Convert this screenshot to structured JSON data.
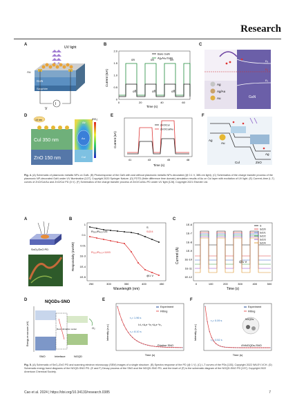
{
  "header": {
    "title": "Research"
  },
  "figure4": {
    "panels": {
      "A": {
        "label": "A",
        "uv": "UV light",
        "layers": [
          "Au",
          "GaN",
          "Sapphire"
        ],
        "v": "V",
        "i": "I"
      },
      "B": {
        "label": "B",
        "legend": [
          "Bare GaN",
          "Ag₁Au₁/GaN"
        ],
        "on": "on",
        "off": "off",
        "ylabel": "Current (mA)",
        "xlabel": "Time (s)",
        "yticks": [
          "0",
          "0.5",
          "1.0",
          "1.5",
          "2.0"
        ],
        "xticks": [
          "0",
          "20",
          "40",
          "60"
        ]
      },
      "C": {
        "label": "C",
        "labels": [
          "Ag",
          "Ag/Au",
          "Au",
          "GaN",
          "Eₑ",
          "Eᵥ",
          "Eₒ"
        ]
      },
      "D": {
        "label": "D",
        "scale": "10 nm",
        "layers": [
          "Cul 350 nm",
          "ZnO 150 nm"
        ],
        "field": [
          "Air",
          "Au",
          "CuI"
        ],
        "cbar": [
          "1.7",
          "1.5",
          "1.1",
          "0.5",
          "0.3"
        ],
        "cbtitle": "|E/E₀|"
      },
      "E": {
        "label": "E",
        "ylabel": "Current (nA)",
        "xlabel": "Time (s)",
        "legend": [
          "ZnO/Cul",
          "ZnO/Cul/Au"
        ],
        "xticks": [
          "41",
          "43",
          "45",
          "48"
        ]
      },
      "F": {
        "label": "F",
        "labels": [
          "Ag",
          "Au",
          "Cul",
          "ZnO",
          "Ag"
        ]
      }
    },
    "caption": "(A) Schematic of plasmonic metallic NPs on GaN. (B) Photoresponse of the GaN with and without plasmonic metallic NPs decorated (@ 0.1 V, 385-nm light). (C) Schematics of the charge transfer process of the plasmonic NP-decorated GaN under UV illumination [127]. Copyright 2020 Springer Nature. (D) FDTD (finite difference time domain) simulation results of Au on Cul layer with excitation of UV light. (E) Current–time (I–T) curves of ZnO/Cul/Au and ZnO/Cul PD (0 V). (F) Schematics of the charge transfer process of ZnO/Cul/Au PD under UV light [128]. Copyright 2021 Elsevier Ltd.",
    "caption_label": "Fig. 4."
  },
  "figure5": {
    "panels": {
      "A": {
        "label": "A",
        "device": "SnO₂/ZnO PD"
      },
      "B": {
        "label": "B",
        "ylabel": "Responsivity (mA/W)",
        "xlabel": "Wavelength (nm)",
        "legend": [
          "S",
          "S/Z/4"
        ],
        "ann1": "R₃₅₀/R₄₀₀=25",
        "ann2": "R₃₅₀/R₄₀₀=1193",
        "bias": "@1 V",
        "xticks": [
          "250",
          "300",
          "350",
          "400",
          "450"
        ],
        "yticks": [
          "1",
          "0.1",
          "0.01",
          "1E-3",
          "1E-4",
          "1E-5"
        ]
      },
      "C": {
        "label": "C",
        "ylabel": "Current (A)",
        "xlabel": "Time (s)",
        "legend": [
          "S",
          "S/Z/0",
          "S/Z/1",
          "S/Z/2",
          "S/Z/3",
          "S/Z/4"
        ],
        "bias": "@1 V",
        "yticks": [
          "1E-6",
          "1E-7",
          "1E-8",
          "1E-9",
          "1E-10",
          "1E-11",
          "1E-12"
        ],
        "xticks": [
          "0",
          "100",
          "200",
          "300",
          "400",
          "500"
        ]
      },
      "D": {
        "label": "D",
        "title": "NQGDs-SNO",
        "ylabel": "Energy vs vacuum (eV)",
        "labels": [
          "SNO",
          "Interface",
          "NGQD",
          "Recombination center",
          "O₂"
        ]
      },
      "E": {
        "label": "E",
        "legend": [
          "Experiment",
          "Fitting"
        ],
        "tau1": "τ₁= 1.96 s",
        "tau2": "τ₂= 8.10 s",
        "formula": "I=I₀+A₁e⁻ᵗ/τ₁+A₂e⁻ᵗ/τ₂",
        "sample": "Pristine SNO",
        "xlabel": "Time (s)",
        "ylabel": "Intensity (a.u.)"
      },
      "F": {
        "label": "F",
        "legend": [
          "Experiment",
          "Fitting"
        ],
        "tau1": "τ₁= 0.09 s",
        "tau2": "τ₂= 0.52 s",
        "sample": "4%NGQDs-SNO",
        "badge": "NGQDs",
        "xlabel": "Time (s)",
        "ylabel": "Intensity (a.u.)"
      }
    },
    "caption": "(A) Schematic of SnO₂/ZnO PD and scanning electron microscopy (SEM) images of a single structure. (B) Spectra response of the PD (@ 1 V). (C) I–T curves of the PDs [133]. Copyright 2022 WILEY-VCH. (D) Schematic energy band diagrams of the NGQD-SNO PD. (E and F) Decay process of the SNO and the NGQD-SNO PD, and the inset of (F) is the schematic diagram of the NGQD-SNO PD [137]. Copyright 2022 American Chemical Society.",
    "caption_label": "Fig. 5."
  },
  "footer": {
    "left": "Cao et al. 2024 | https://doi.org/10.34133/research.0385",
    "right": "7"
  }
}
